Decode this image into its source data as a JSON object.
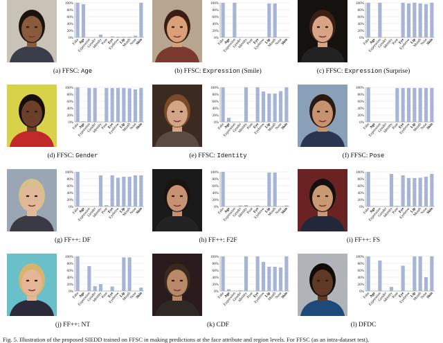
{
  "attribute_labels": [
    "Fake",
    "Age",
    "Expression",
    "Gender",
    "Identity",
    "Pose",
    "Eye",
    "Eyebrow",
    "Lip",
    "Mouth",
    "Nose",
    "Skin"
  ],
  "bold_labels": [
    false,
    true,
    false,
    false,
    false,
    false,
    true,
    false,
    true,
    false,
    false,
    true
  ],
  "yticks": [
    "0%",
    "20%",
    "40%",
    "60%",
    "80%",
    "100%"
  ],
  "bar_color": "#a6b5d6",
  "panels": [
    {
      "caption_pre": "(a) FFSC: ",
      "caption_mono": "Age",
      "caption_post": "",
      "photo": {
        "skin": "#8a5a3c",
        "hair": "#1a1410",
        "bg": "#c9c2b6",
        "shirt": "#3b3e4a"
      },
      "values": [
        100,
        96,
        0,
        0,
        8,
        0,
        3,
        2,
        2,
        2,
        5,
        100
      ]
    },
    {
      "caption_pre": "(b) FFSC: ",
      "caption_mono": "Expression",
      "caption_post": " (Smile)",
      "photo": {
        "skin": "#d9a078",
        "hair": "#3a1e12",
        "bg": "#b8a590",
        "shirt": "#7a3a30"
      },
      "values": [
        100,
        0,
        100,
        0,
        0,
        0,
        1,
        0,
        98,
        98,
        0,
        1
      ]
    },
    {
      "caption_pre": "(c) FFSC: ",
      "caption_mono": "Expression",
      "caption_post": " (Surprise)",
      "photo": {
        "skin": "#d9a486",
        "hair": "#3a2014",
        "bg": "#15110f",
        "shirt": "#222222"
      },
      "values": [
        100,
        0,
        100,
        0,
        0,
        0,
        100,
        98,
        100,
        98,
        96,
        100
      ]
    },
    {
      "caption_pre": "(d) FFSC: ",
      "caption_mono": "Gender",
      "caption_post": "",
      "photo": {
        "skin": "#6b3f28",
        "hair": "#150e0a",
        "bg": "#d8d24a",
        "shirt": "#c22a2a"
      },
      "values": [
        100,
        2,
        98,
        98,
        0,
        98,
        98,
        98,
        98,
        97,
        94,
        98
      ]
    },
    {
      "caption_pre": "(e) FFSC: ",
      "caption_mono": "Identity",
      "caption_post": "",
      "photo": {
        "skin": "#d4a486",
        "hair": "#7a4a2a",
        "bg": "#3a2a20",
        "shirt": "#5a4a40"
      },
      "values": [
        100,
        12,
        0,
        0,
        100,
        0,
        100,
        88,
        82,
        82,
        89,
        100
      ]
    },
    {
      "caption_pre": "(f) FFSC: ",
      "caption_mono": "Pose",
      "caption_post": "",
      "photo": {
        "skin": "#c79270",
        "hair": "#2a1a12",
        "bg": "#8aa0b8",
        "shirt": "#2a3650"
      },
      "values": [
        100,
        0,
        0,
        0,
        0,
        98,
        98,
        98,
        98,
        98,
        98,
        98
      ]
    },
    {
      "caption_pre": "(g) FF++: DF",
      "caption_mono": "",
      "caption_post": "",
      "photo": {
        "skin": "#e2b89a",
        "hair": "#d8c08a",
        "bg": "#9aa6b4",
        "shirt": "#3a3a44"
      },
      "values": [
        100,
        0,
        0,
        0,
        90,
        4,
        90,
        83,
        86,
        86,
        90,
        90
      ]
    },
    {
      "caption_pre": "(h) FF++: F2F",
      "caption_mono": "",
      "caption_post": "",
      "photo": {
        "skin": "#c89272",
        "hair": "#1a1410",
        "bg": "#1a1a1a",
        "shirt": "#222222"
      },
      "values": [
        100,
        0,
        0,
        3,
        4,
        0,
        3,
        0,
        98,
        98,
        0,
        3
      ]
    },
    {
      "caption_pre": "(i) FF++: FS",
      "caption_mono": "",
      "caption_post": "",
      "photo": {
        "skin": "#c99a72",
        "hair": "#141010",
        "bg": "#6a2222",
        "shirt": "#22283a"
      },
      "values": [
        100,
        0,
        0,
        0,
        94,
        2,
        90,
        82,
        82,
        83,
        86,
        94
      ]
    },
    {
      "caption_pre": "(j) FF++: NT",
      "caption_mono": "",
      "caption_post": "",
      "photo": {
        "skin": "#e4b696",
        "hair": "#d6b46c",
        "bg": "#6ac0c8",
        "shirt": "#2a2a3a"
      },
      "values": [
        100,
        0,
        72,
        14,
        20,
        0,
        13,
        0,
        97,
        97,
        0,
        10
      ]
    },
    {
      "caption_pre": "(k) CDF",
      "caption_mono": "",
      "caption_post": "",
      "photo": {
        "skin": "#b98866",
        "hair": "#3a2a1c",
        "bg": "#2a1c1c",
        "shirt": "#302824"
      },
      "values": [
        100,
        5,
        0,
        2,
        100,
        0,
        100,
        84,
        70,
        70,
        68,
        100
      ]
    },
    {
      "caption_pre": "(l) DFDC",
      "caption_mono": "",
      "caption_post": "",
      "photo": {
        "skin": "#5e3a24",
        "hair": "#120c08",
        "bg": "#b0b4b8",
        "shirt": "#1e4a7a"
      },
      "values": [
        100,
        0,
        88,
        0,
        12,
        0,
        73,
        0,
        100,
        100,
        40,
        100
      ]
    }
  ],
  "footer": "Fig. 5.  Illustration of the proposed SIEDD trained on FFSC in making predictions at the face attribute and region levels. For FFSC (as an intra-dataset test),"
}
